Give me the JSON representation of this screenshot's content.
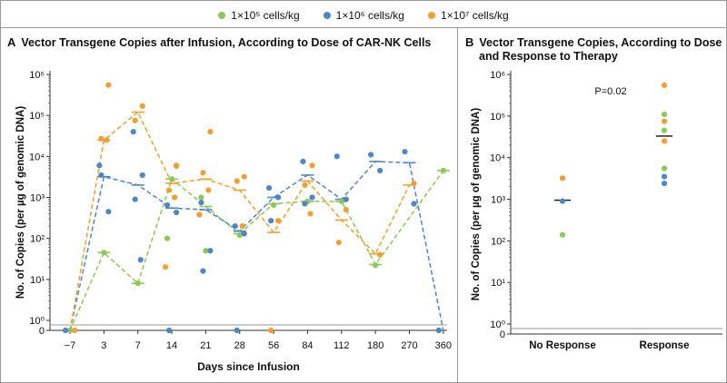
{
  "legend": [
    {
      "label": "1×10⁵ cells/kg",
      "color": "#8dc85a"
    },
    {
      "label": "1×10⁶ cells/kg",
      "color": "#4f86c6"
    },
    {
      "label": "1×10⁷ cells/kg",
      "color": "#f0a032"
    }
  ],
  "panel_a": {
    "letter": "A",
    "title": "Vector Transgene Copies after Infusion, According to Dose of CAR-NK Cells"
  },
  "panel_b": {
    "letter": "B",
    "title_line1": "Vector Transgene Copies, According to Dose",
    "title_line2": "and Response to Therapy"
  },
  "chart_data": [
    {
      "type": "scatter",
      "title": "Vector Transgene Copies after Infusion, According to Dose of CAR-NK Cells",
      "xlabel": "Days since Infusion",
      "ylabel": "No. of Copies (per µg of genomic DNA)",
      "categories": [
        "−7",
        "3",
        "7",
        "14",
        "21",
        "28",
        "56",
        "84",
        "112",
        "180",
        "270",
        "360"
      ],
      "y_scale": "log",
      "ylim": [
        0,
        1000000
      ],
      "y_ticks": [
        "0",
        "10⁰",
        "10¹",
        "10²",
        "10³",
        "10⁴",
        "10⁵",
        "10⁶"
      ],
      "series": [
        {
          "name": "1×10⁵ cells/kg",
          "color": "#8dc85a",
          "points": [
            [
              0,
              0
            ],
            [
              1,
              45
            ],
            [
              2,
              8
            ],
            [
              3,
              2800
            ],
            [
              3,
              100
            ],
            [
              3,
              5800
            ],
            [
              4,
              50
            ],
            [
              4,
              1000
            ],
            [
              5,
              120
            ],
            [
              6,
              650
            ],
            [
              7,
              800
            ],
            [
              8,
              800
            ],
            [
              9,
              22
            ],
            [
              11,
              4500
            ]
          ],
          "median": [
            0,
            45,
            8,
            2800,
            600,
            130,
            700,
            800,
            800,
            23,
            null,
            4500
          ]
        },
        {
          "name": "1×10⁶ cells/kg",
          "color": "#4f86c6",
          "points": [
            [
              0,
              0
            ],
            [
              1,
              6000
            ],
            [
              1,
              450
            ],
            [
              1,
              3500
            ],
            [
              2,
              40000
            ],
            [
              2,
              3500
            ],
            [
              2,
              900
            ],
            [
              2,
              30
            ],
            [
              3,
              650
            ],
            [
              3,
              430
            ],
            [
              3,
              0
            ],
            [
              4,
              750
            ],
            [
              4,
              50
            ],
            [
              4,
              16
            ],
            [
              5,
              200
            ],
            [
              5,
              130
            ],
            [
              5,
              0
            ],
            [
              6,
              1700
            ],
            [
              6,
              1000
            ],
            [
              6,
              270
            ],
            [
              7,
              7500
            ],
            [
              7,
              1000
            ],
            [
              7,
              700
            ],
            [
              8,
              10000
            ],
            [
              8,
              900
            ],
            [
              9,
              11000
            ],
            [
              9,
              4500
            ],
            [
              10,
              13000
            ],
            [
              10,
              700
            ],
            [
              11,
              0
            ]
          ],
          "median": [
            0,
            3200,
            2000,
            550,
            500,
            150,
            1000,
            3500,
            900,
            7500,
            7000,
            0
          ]
        },
        {
          "name": "1×10⁷ cells/kg",
          "color": "#f0a032",
          "points": [
            [
              0,
              0
            ],
            [
              1,
              550000
            ],
            [
              1,
              27000
            ],
            [
              1,
              25000
            ],
            [
              2,
              170000
            ],
            [
              2,
              75000
            ],
            [
              3,
              6000
            ],
            [
              3,
              1500
            ],
            [
              3,
              1000
            ],
            [
              3,
              20
            ],
            [
              4,
              40000
            ],
            [
              4,
              4000
            ],
            [
              4,
              1500
            ],
            [
              4,
              380
            ],
            [
              5,
              3200
            ],
            [
              5,
              2500
            ],
            [
              5,
              200
            ],
            [
              6,
              270
            ],
            [
              6,
              0
            ],
            [
              7,
              6000
            ],
            [
              7,
              2000
            ],
            [
              7,
              400
            ],
            [
              8,
              500
            ],
            [
              8,
              80
            ],
            [
              9,
              40
            ],
            [
              10,
              2200
            ]
          ],
          "median": [
            0,
            25000,
            120000,
            2200,
            2800,
            1500,
            140,
            2500,
            280,
            42,
            2000,
            null
          ]
        }
      ]
    },
    {
      "type": "scatter",
      "title": "Vector Transgene Copies, According to Dose and Response to Therapy",
      "xlabel": "",
      "ylabel": "No. of Copies (per µg of genomic DNA)",
      "categories": [
        "No Response",
        "Response"
      ],
      "y_scale": "log",
      "ylim": [
        0,
        1000000
      ],
      "y_ticks": [
        "0",
        "10⁰",
        "10¹",
        "10²",
        "10³",
        "10⁴",
        "10⁵",
        "10⁶"
      ],
      "annotation": "P=0.02",
      "points": [
        {
          "group": "No Response",
          "value": 3200,
          "series": "1×10⁷ cells/kg"
        },
        {
          "group": "No Response",
          "value": 900,
          "series": "1×10⁶ cells/kg"
        },
        {
          "group": "No Response",
          "value": 140,
          "series": "1×10⁵ cells/kg"
        },
        {
          "group": "Response",
          "value": 550000,
          "series": "1×10⁷ cells/kg"
        },
        {
          "group": "Response",
          "value": 110000,
          "series": "1×10⁵ cells/kg"
        },
        {
          "group": "Response",
          "value": 75000,
          "series": "1×10⁷ cells/kg"
        },
        {
          "group": "Response",
          "value": 45000,
          "series": "1×10⁵ cells/kg"
        },
        {
          "group": "Response",
          "value": 25000,
          "series": "1×10⁷ cells/kg"
        },
        {
          "group": "Response",
          "value": 5500,
          "series": "1×10⁵ cells/kg"
        },
        {
          "group": "Response",
          "value": 3500,
          "series": "1×10⁶ cells/kg"
        },
        {
          "group": "Response",
          "value": 2400,
          "series": "1×10⁶ cells/kg"
        }
      ],
      "medians": [
        {
          "group": "No Response",
          "value": 950
        },
        {
          "group": "Response",
          "value": 33000
        }
      ]
    }
  ]
}
